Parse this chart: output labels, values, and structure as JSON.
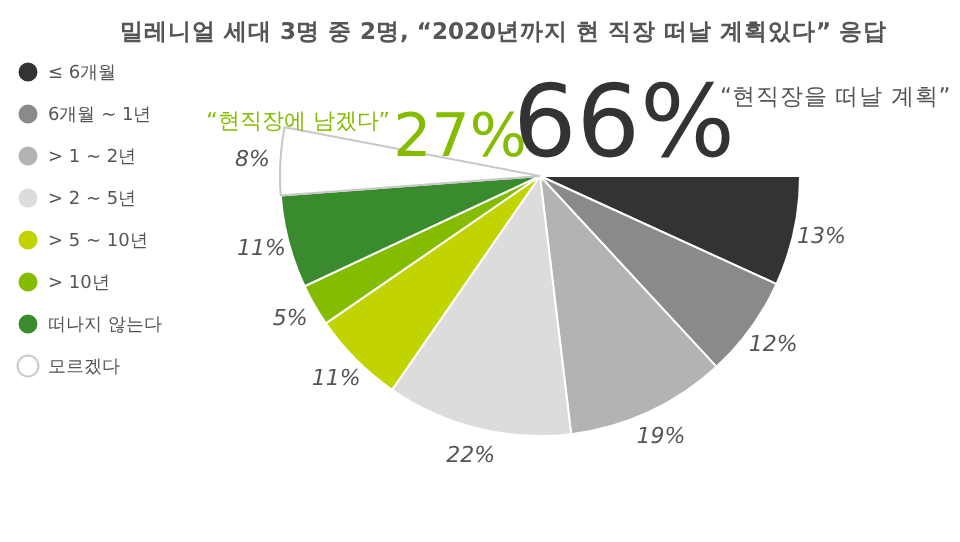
{
  "chart_data": {
    "type": "pie",
    "title": "밀레니얼 세대 3명 중 2명, “2020년까지 현 직장 떠날 계획있다” 응답",
    "categories": [
      "≤ 6개월",
      "6개월 ~ 1년",
      "> 1 ~ 2년",
      "> 2 ~ 5년",
      "> 5 ~ 10년",
      "> 10년",
      "떠나지 않는다",
      "모르겠다"
    ],
    "values": [
      13,
      12,
      19,
      22,
      11,
      5,
      11,
      8
    ],
    "value_labels": [
      "13%",
      "12%",
      "19%",
      "22%",
      "11%",
      "5%",
      "11%",
      "8%"
    ],
    "colors": [
      "#333333",
      "#8a8a8a",
      "#b3b3b3",
      "#dcdcdc",
      "#c2d400",
      "#84bd00",
      "#3a8a2e",
      "#ffffff"
    ],
    "legend": "top left",
    "annotations": [
      "“현직장에 남겠다”",
      "27%",
      "66%",
      "“현직장을 떠날 계획”"
    ]
  }
}
